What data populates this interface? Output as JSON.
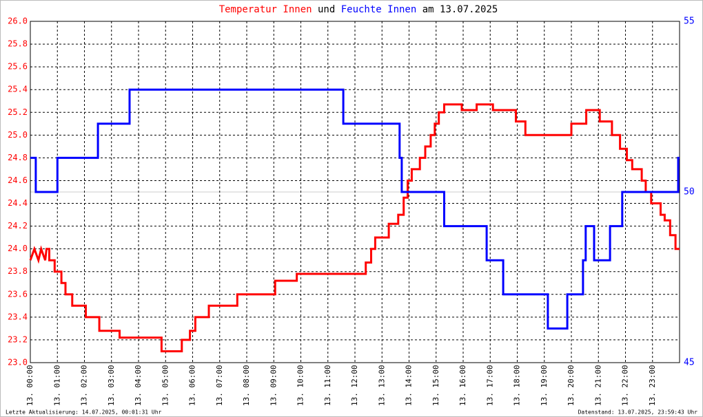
{
  "chart_data": {
    "type": "line",
    "title_joiner": "und",
    "title_suffix": "am 13.07.2025",
    "footer_left": "Letzte Aktualisierung: 14.07.2025, 00:01:31 Uhr",
    "footer_right": "Datenstand: 13.07.2025, 23:59:43 Uhr",
    "grid": true,
    "xlim": [
      0,
      24
    ],
    "xticks": [
      {
        "value": 0,
        "label": "13. 00:00"
      },
      {
        "value": 1,
        "label": "13. 01:00"
      },
      {
        "value": 2,
        "label": "13. 02:00"
      },
      {
        "value": 3,
        "label": "13. 03:00"
      },
      {
        "value": 4,
        "label": "13. 04:00"
      },
      {
        "value": 5,
        "label": "13. 05:00"
      },
      {
        "value": 6,
        "label": "13. 06:00"
      },
      {
        "value": 7,
        "label": "13. 07:00"
      },
      {
        "value": 8,
        "label": "13. 08:00"
      },
      {
        "value": 9,
        "label": "13. 09:00"
      },
      {
        "value": 10,
        "label": "13. 10:00"
      },
      {
        "value": 11,
        "label": "13. 11:00"
      },
      {
        "value": 12,
        "label": "13. 12:00"
      },
      {
        "value": 13,
        "label": "13. 13:00"
      },
      {
        "value": 14,
        "label": "13. 14:00"
      },
      {
        "value": 15,
        "label": "13. 15:00"
      },
      {
        "value": 16,
        "label": "13. 16:00"
      },
      {
        "value": 17,
        "label": "13. 17:00"
      },
      {
        "value": 18,
        "label": "13. 18:00"
      },
      {
        "value": 19,
        "label": "13. 19:00"
      },
      {
        "value": 20,
        "label": "13. 20:00"
      },
      {
        "value": 21,
        "label": "13. 21:00"
      },
      {
        "value": 22,
        "label": "13. 22:00"
      },
      {
        "value": 23,
        "label": "13. 23:00"
      }
    ],
    "ylim": [
      23.0,
      26.0
    ],
    "yticks": [
      {
        "value": 23.0,
        "label": "23.0"
      },
      {
        "value": 23.2,
        "label": "23.2"
      },
      {
        "value": 23.4,
        "label": "23.4"
      },
      {
        "value": 23.6,
        "label": "23.6"
      },
      {
        "value": 23.8,
        "label": "23.8"
      },
      {
        "value": 24.0,
        "label": "24.0"
      },
      {
        "value": 24.2,
        "label": "24.2"
      },
      {
        "value": 24.4,
        "label": "24.4"
      },
      {
        "value": 24.6,
        "label": "24.6"
      },
      {
        "value": 24.8,
        "label": "24.8"
      },
      {
        "value": 25.0,
        "label": "25.0"
      },
      {
        "value": 25.2,
        "label": "25.2"
      },
      {
        "value": 25.4,
        "label": "25.4"
      },
      {
        "value": 25.6,
        "label": "25.6"
      },
      {
        "value": 25.8,
        "label": "25.8"
      },
      {
        "value": 26.0,
        "label": "26.0"
      }
    ],
    "y2lim": [
      45,
      55
    ],
    "y2ticks": [
      45,
      50,
      55
    ],
    "series": [
      {
        "name": "Temperatur Innen",
        "color": "#ff0000",
        "x": [
          0,
          0.15,
          0.3,
          0.4,
          0.55,
          0.6,
          0.7,
          0.7,
          0.9,
          0.9,
          1.15,
          1.15,
          1.3,
          1.3,
          1.55,
          1.55,
          2.05,
          2.05,
          2.55,
          2.55,
          3.3,
          3.3,
          4.85,
          4.85,
          5.6,
          5.6,
          5.9,
          5.9,
          6.1,
          6.1,
          6.6,
          6.6,
          7.65,
          7.65,
          9.05,
          9.05,
          9.85,
          9.85,
          12.4,
          12.4,
          12.6,
          12.6,
          12.75,
          12.75,
          13.25,
          13.25,
          13.6,
          13.6,
          13.8,
          13.8,
          13.95,
          13.95,
          14.1,
          14.1,
          14.4,
          14.4,
          14.6,
          14.6,
          14.8,
          14.8,
          14.95,
          14.95,
          15.1,
          15.1,
          15.3,
          15.3,
          15.95,
          15.95,
          16.5,
          16.5,
          17.1,
          17.1,
          17.95,
          17.95,
          18.3,
          18.3,
          20.0,
          20.0,
          20.55,
          20.55,
          21.05,
          21.05,
          21.5,
          21.5,
          21.8,
          21.8,
          22.05,
          22.05,
          22.25,
          22.25,
          22.6,
          22.6,
          22.75,
          22.75,
          22.95,
          22.95,
          23.3,
          23.3,
          23.45,
          23.45,
          23.65,
          23.65,
          23.85,
          23.85,
          24.0
        ],
        "values": [
          23.9,
          24.0,
          23.9,
          24.0,
          23.9,
          24.0,
          24.0,
          23.9,
          23.9,
          23.8,
          23.8,
          23.7,
          23.7,
          23.6,
          23.6,
          23.5,
          23.5,
          23.4,
          23.4,
          23.28,
          23.28,
          23.22,
          23.22,
          23.1,
          23.1,
          23.2,
          23.2,
          23.28,
          23.28,
          23.4,
          23.4,
          23.5,
          23.5,
          23.6,
          23.6,
          23.72,
          23.72,
          23.78,
          23.78,
          23.88,
          23.88,
          24.0,
          24.0,
          24.1,
          24.1,
          24.22,
          24.22,
          24.3,
          24.3,
          24.45,
          24.45,
          24.6,
          24.6,
          24.7,
          24.7,
          24.8,
          24.8,
          24.9,
          24.9,
          25.0,
          25.0,
          25.1,
          25.1,
          25.2,
          25.2,
          25.27,
          25.27,
          25.22,
          25.22,
          25.27,
          25.27,
          25.22,
          25.22,
          25.12,
          25.12,
          25.0,
          25.0,
          25.1,
          25.1,
          25.22,
          25.22,
          25.12,
          25.12,
          25.0,
          25.0,
          24.88,
          24.88,
          24.78,
          24.78,
          24.7,
          24.7,
          24.6,
          24.6,
          24.5,
          24.5,
          24.4,
          24.4,
          24.3,
          24.3,
          24.25,
          24.25,
          24.12,
          24.12,
          24.0,
          24.0
        ]
      },
      {
        "name": "Feuchte Innen",
        "color": "#0000ff",
        "axis": "y2",
        "x": [
          0,
          0.2,
          0.2,
          1.0,
          1.0,
          2.5,
          2.5,
          3.67,
          3.67,
          11.57,
          11.57,
          13.65,
          13.65,
          13.73,
          13.73,
          15.3,
          15.3,
          16.87,
          16.87,
          17.48,
          17.48,
          19.13,
          19.13,
          19.85,
          19.85,
          20.43,
          20.43,
          20.53,
          20.53,
          20.84,
          20.84,
          21.43,
          21.43,
          21.88,
          21.88,
          23.95,
          23.95,
          24.0
        ],
        "values": [
          51,
          51,
          50,
          50,
          51,
          51,
          52,
          52,
          53,
          53,
          52,
          52,
          51,
          51,
          50,
          50,
          49,
          49,
          48,
          48,
          47,
          47,
          46,
          46,
          47,
          47,
          48,
          48,
          49,
          49,
          48,
          48,
          49,
          49,
          50,
          50,
          51,
          51
        ]
      }
    ]
  }
}
